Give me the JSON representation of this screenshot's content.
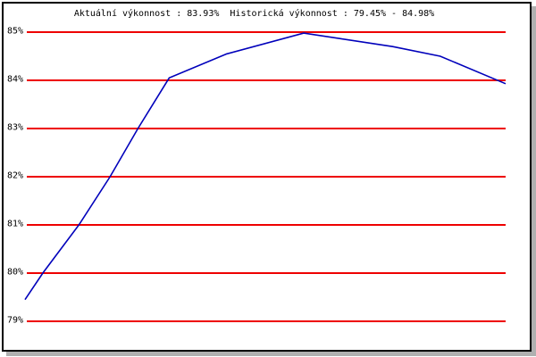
{
  "window": {
    "background": "#ffffff",
    "frame_border_color": "#000000",
    "shadow_color": "#b0b0b0"
  },
  "chart_data": {
    "type": "line",
    "title": "Aktuální výkonnost : 83.93%  Historická výkonnost : 79.45% - 84.98%",
    "current_performance": "83.93%",
    "historical_min": "79.45%",
    "historical_max": "84.98%",
    "xlabel": "",
    "ylabel": "",
    "ylim": [
      79,
      85
    ],
    "y_ticks": [
      "85%",
      "84%",
      "83%",
      "82%",
      "81%",
      "80%",
      "79%"
    ],
    "y_tick_values": [
      85,
      84,
      83,
      82,
      81,
      80,
      79
    ],
    "grid": "horizontal",
    "gridline_color": "#ee0000",
    "label_color": "#000000",
    "legend_position": "none",
    "series": [
      {
        "name": "výkonnost",
        "color": "#0000bb",
        "points": [
          [
            0.0,
            79.45
          ],
          [
            0.037,
            80.0
          ],
          [
            0.112,
            81.0
          ],
          [
            0.177,
            82.0
          ],
          [
            0.235,
            83.0
          ],
          [
            0.3,
            84.05
          ],
          [
            0.42,
            84.55
          ],
          [
            0.58,
            84.98
          ],
          [
            0.765,
            84.7
          ],
          [
            0.864,
            84.5
          ],
          [
            1.0,
            83.93
          ]
        ]
      }
    ]
  }
}
